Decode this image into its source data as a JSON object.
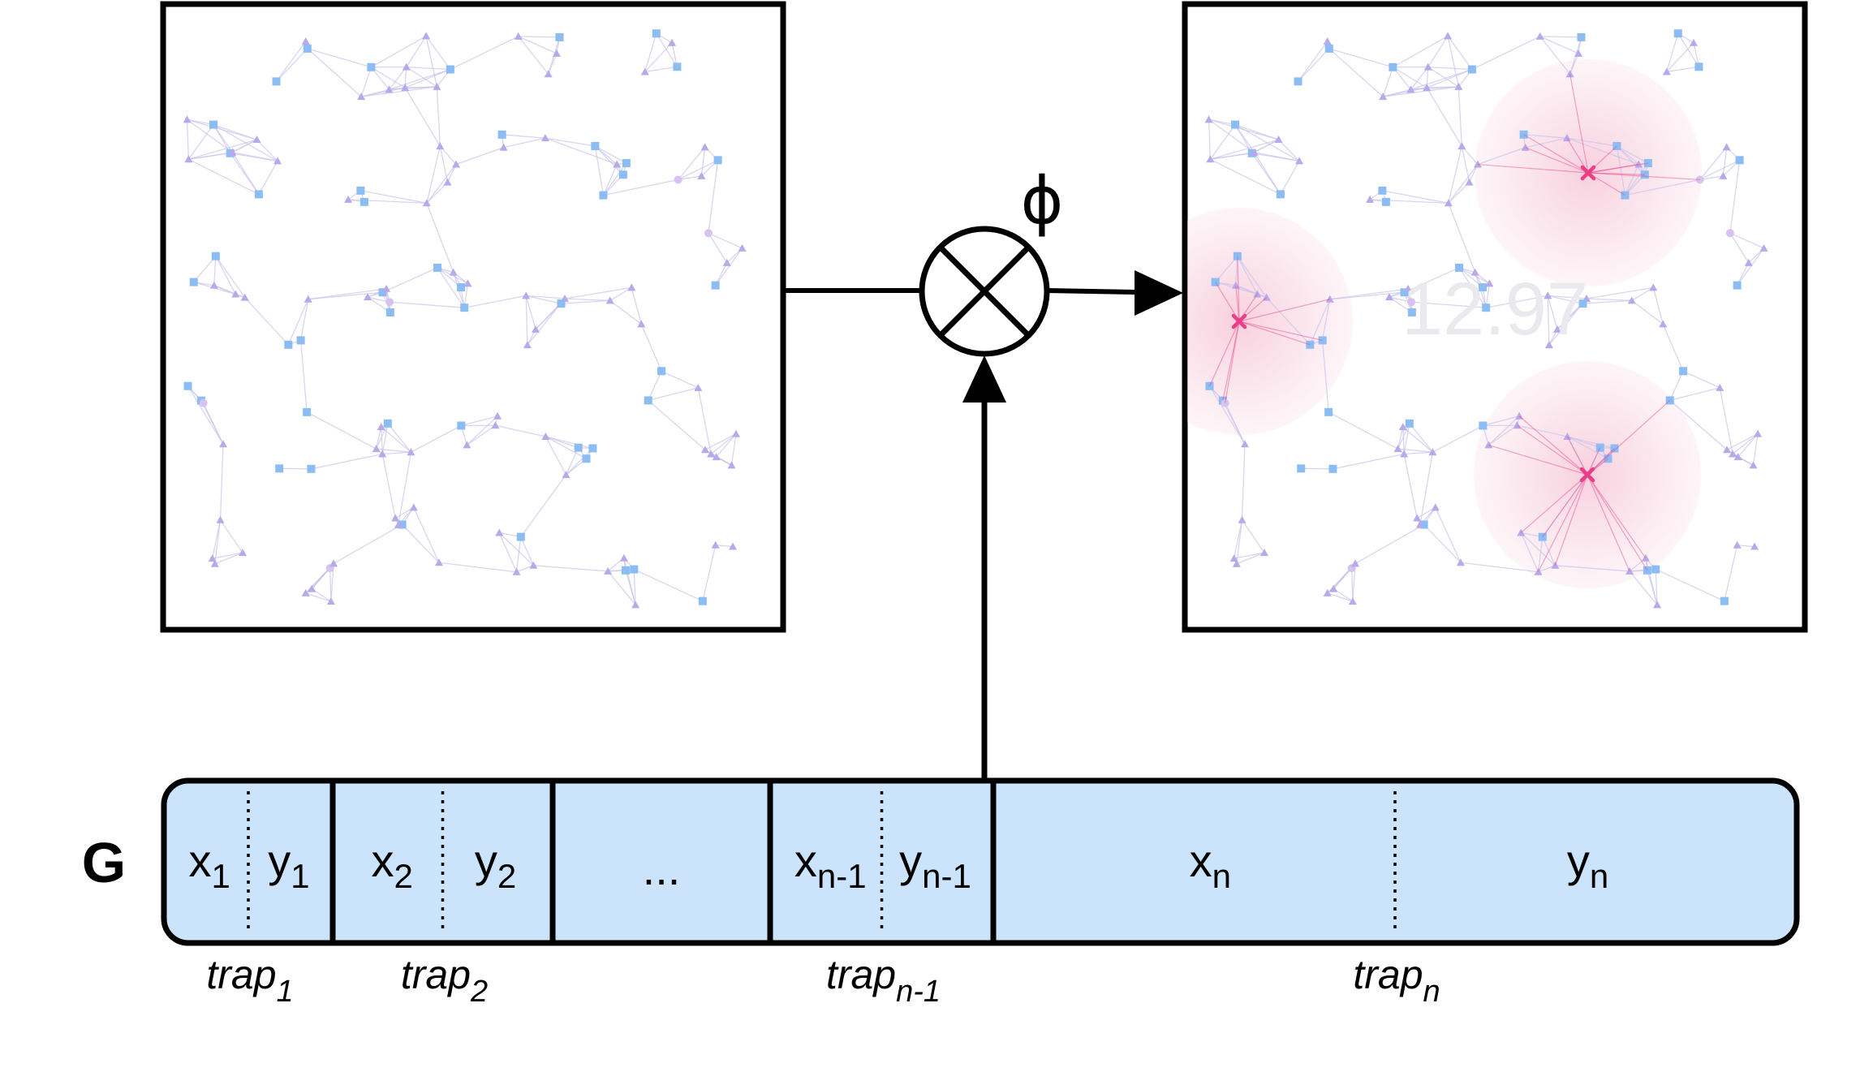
{
  "colors": {
    "stroke": "#000000",
    "cell_fill": "#cce4fb",
    "node_square": "#8bbcf4",
    "node_triangle": "#b7a9ea",
    "node_circle": "#d6c3ef",
    "edge": "#c9c3ea",
    "trap_marker": "#ea3f86",
    "trap_halo": "#f6c6d6",
    "score_text": "#e9e9ee"
  },
  "operator": {
    "symbol": "⊗",
    "label": "ϕ"
  },
  "right_panel": {
    "score": "12.97"
  },
  "genome": {
    "label": "G",
    "segments": [
      {
        "x_base": "x",
        "x_sub": "1",
        "y_base": "y",
        "y_sub": "1",
        "trap_base": "trap",
        "trap_sub": "1"
      },
      {
        "x_base": "x",
        "x_sub": "2",
        "y_base": "y",
        "y_sub": "2",
        "trap_base": "trap",
        "trap_sub": "2"
      },
      {
        "ellipsis": "..."
      },
      {
        "x_base": "x",
        "x_sub": "n-1",
        "y_base": "y",
        "y_sub": "n-1",
        "trap_base": "trap",
        "trap_sub": "n-1"
      },
      {
        "x_base": "x",
        "x_sub": "n",
        "y_base": "y",
        "y_sub": "n",
        "trap_base": "trap",
        "trap_sub": "n"
      }
    ]
  }
}
